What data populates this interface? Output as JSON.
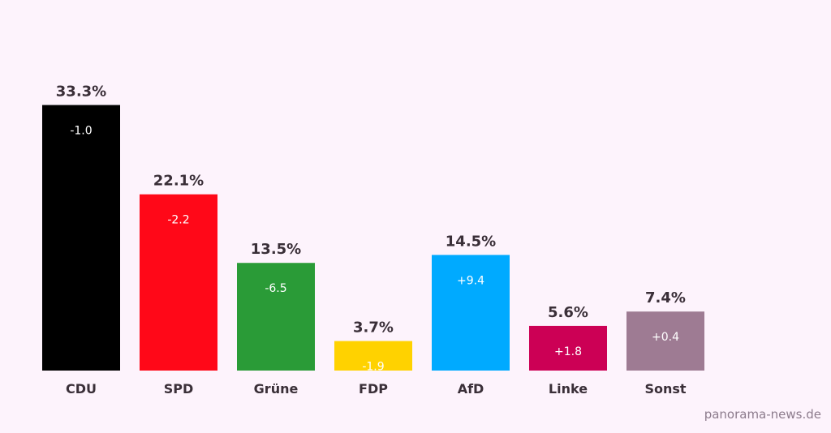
{
  "chart_data": {
    "type": "bar",
    "title": "",
    "xlabel": "",
    "ylabel": "",
    "ylim": [
      0,
      36
    ],
    "categories": [
      "CDU",
      "SPD",
      "Grüne",
      "FDP",
      "AfD",
      "Linke",
      "Sonst"
    ],
    "values": [
      33.3,
      22.1,
      13.5,
      3.7,
      14.5,
      5.6,
      7.4
    ],
    "value_labels": [
      "33.3%",
      "22.1%",
      "13.5%",
      "3.7%",
      "14.5%",
      "5.6%",
      "7.4%"
    ],
    "change_labels": [
      "-1.0",
      "-2.2",
      "-6.5",
      "-1.9",
      "+9.4",
      "+1.8",
      "+0.4"
    ],
    "colors": [
      "#000000",
      "#ff0818",
      "#2a9b37",
      "#ffd200",
      "#00aaff",
      "#cc0055",
      "#9e7b93"
    ],
    "grid": false,
    "legend": "none"
  },
  "watermark": "panorama-news.de"
}
